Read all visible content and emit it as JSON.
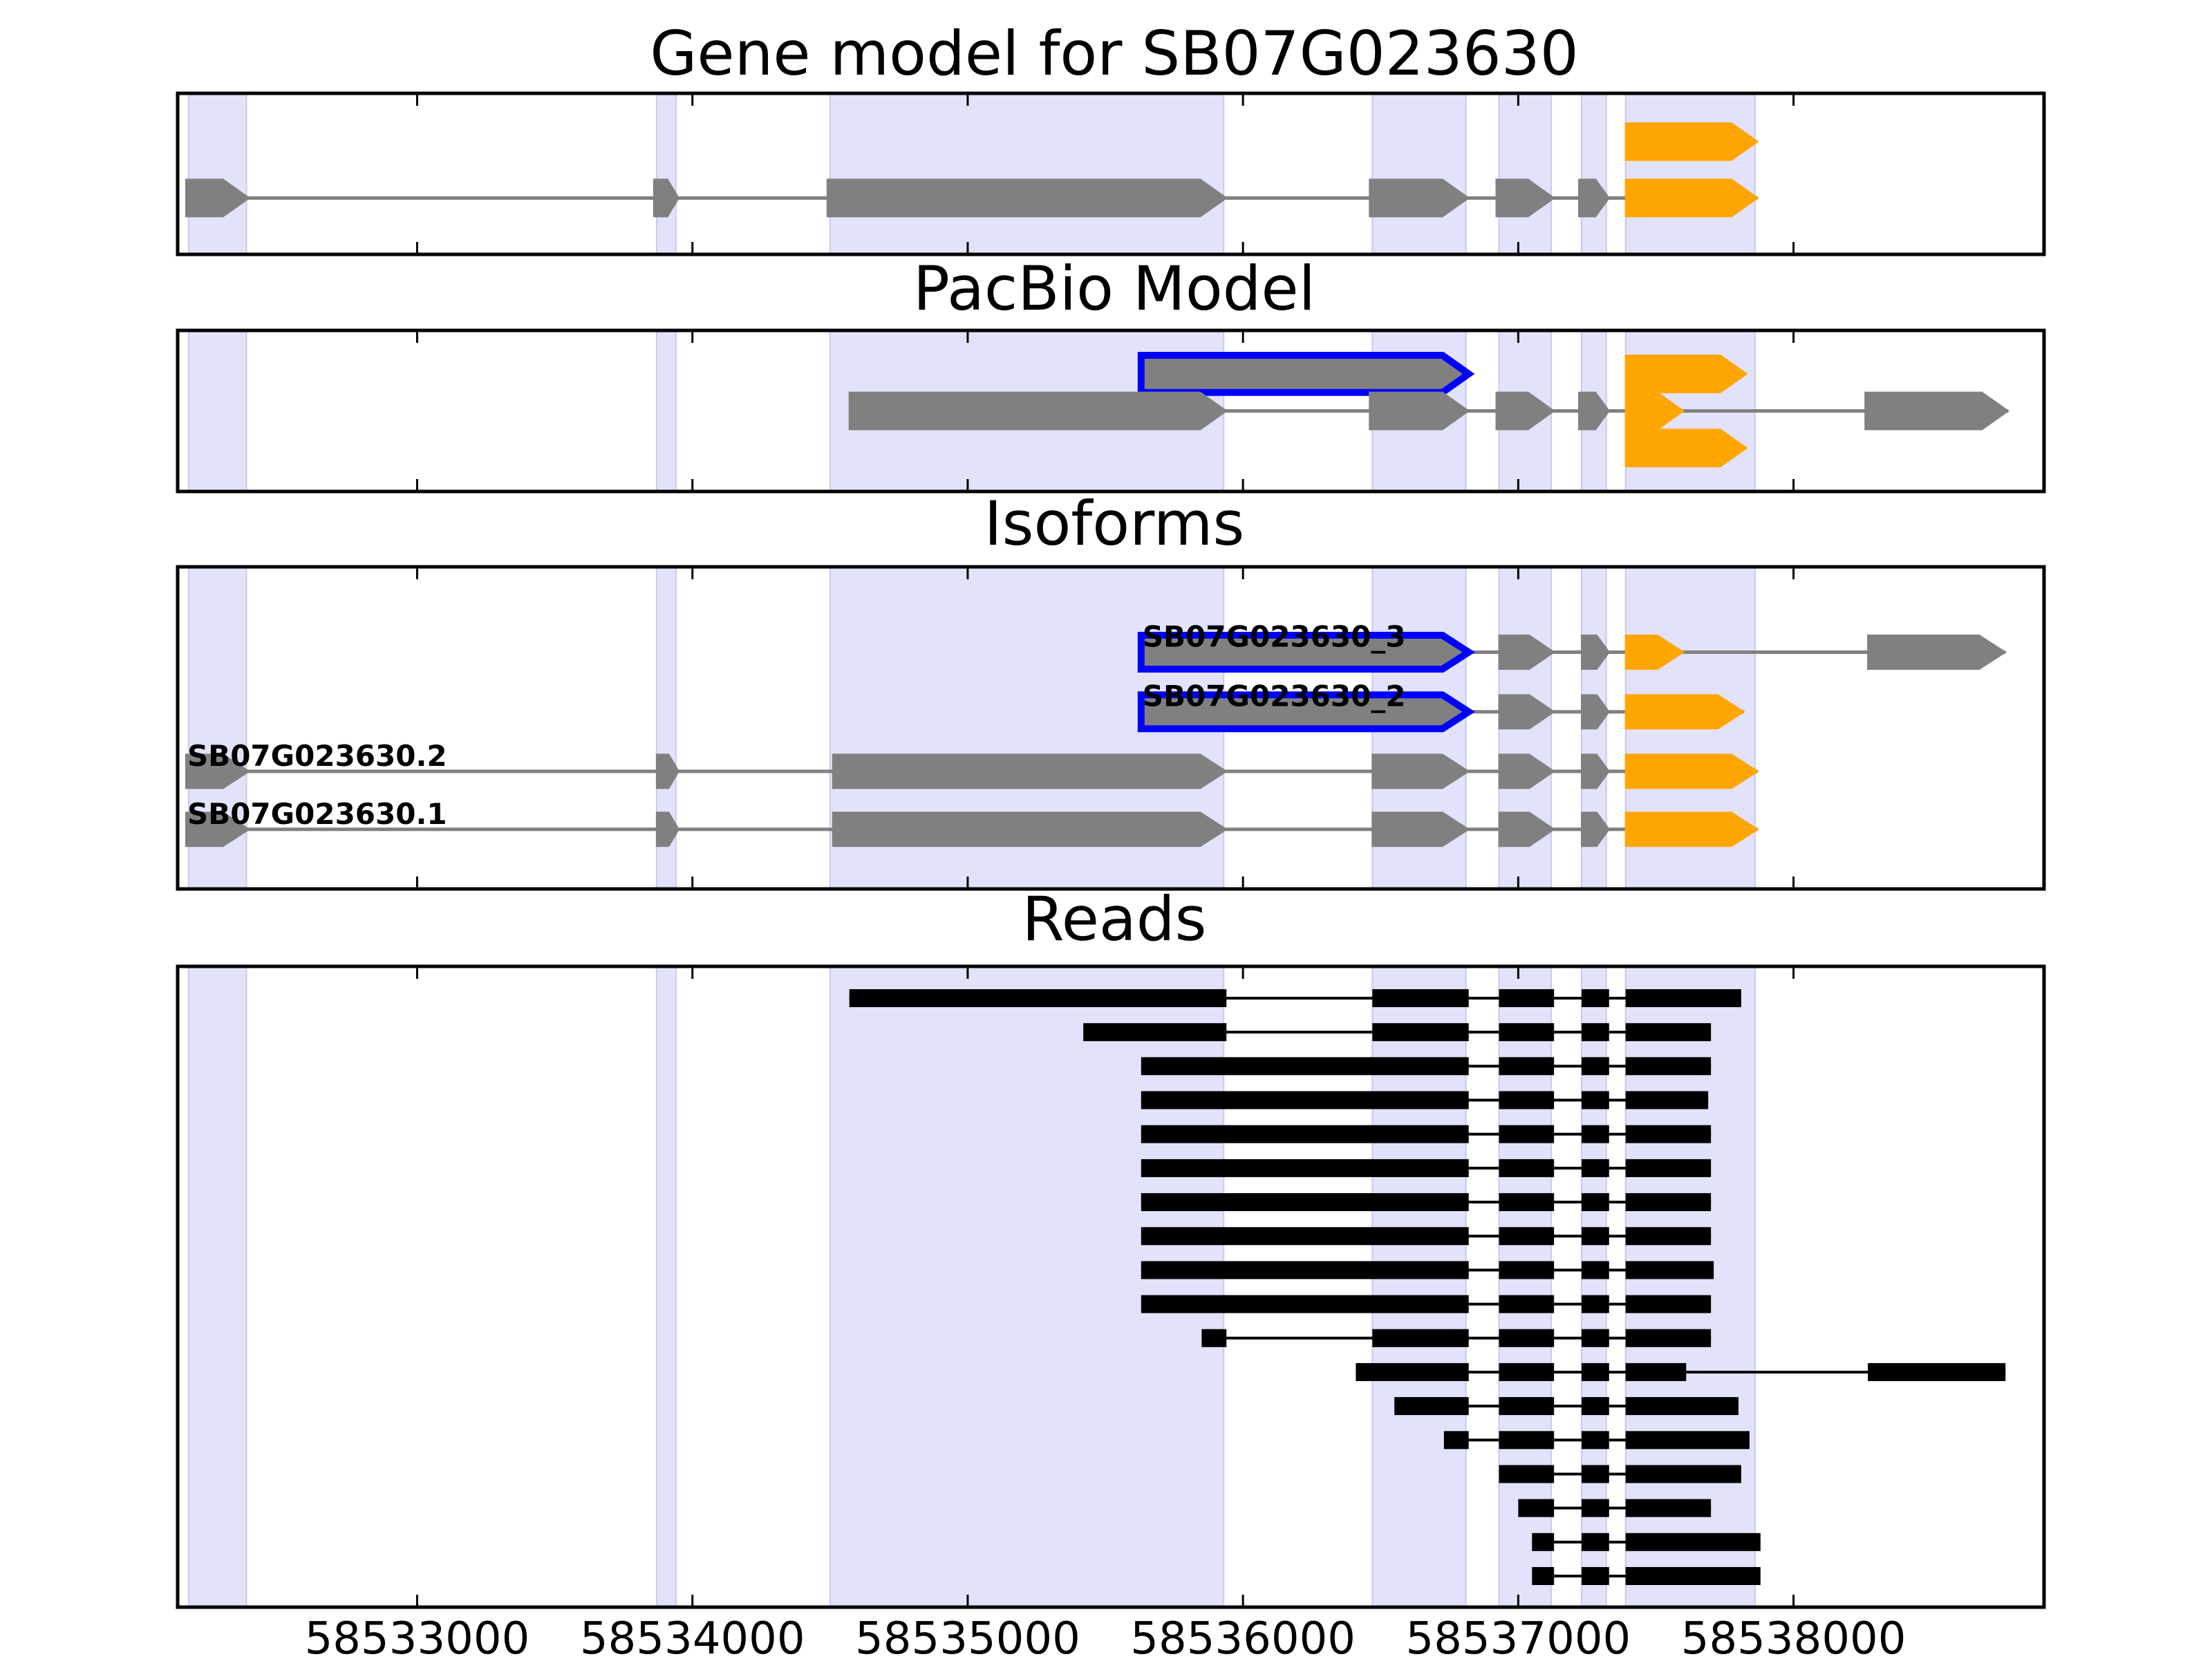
{
  "chart_data": {
    "type": "gene-structure",
    "xlim": [
      58532130,
      58538910
    ],
    "xticks": [
      58533000,
      58534000,
      58535000,
      58536000,
      58537000,
      58538000
    ],
    "xtick_labels": [
      "58533000",
      "58534000",
      "58535000",
      "58536000",
      "58537000",
      "58538000"
    ],
    "colors": {
      "exon": "#808080",
      "utr": "#ffa500",
      "highlight_outline": "#0000ff",
      "shade": "#e2e2fb",
      "intron_line": "#808080",
      "read": "#000000"
    },
    "shaded_regions": [
      [
        58532170,
        58532380
      ],
      [
        58533870,
        58533940
      ],
      [
        58534500,
        58535930
      ],
      [
        58536470,
        58536810
      ],
      [
        58536930,
        58537120
      ],
      [
        58537230,
        58537320
      ],
      [
        58537390,
        58537860
      ]
    ],
    "panels": [
      {
        "title": "Gene model for SB07G023630",
        "kind": "gene",
        "tracks": [
          {
            "label": "",
            "highlight": false,
            "y": 0.3,
            "exons": [
              [
                58537390,
                58537870,
                "utr"
              ]
            ]
          },
          {
            "label": "",
            "highlight": false,
            "y": 0.65,
            "exons": [
              [
                58532160,
                58532390,
                "cds"
              ],
              [
                58533860,
                58533950,
                "cds"
              ],
              [
                58534490,
                58535940,
                "cds"
              ],
              [
                58536460,
                58536820,
                "cds"
              ],
              [
                58536920,
                58537130,
                "cds"
              ],
              [
                58537220,
                58537330,
                "cds"
              ],
              [
                58537390,
                58537870,
                "utr"
              ]
            ]
          }
        ]
      },
      {
        "title": "PacBio Model",
        "kind": "gene",
        "tracks": [
          {
            "label": "",
            "highlight": true,
            "y": 0.27,
            "exons": [
              [
                58535630,
                58536820,
                "cds"
              ]
            ]
          },
          {
            "label": "",
            "highlight": false,
            "y": 0.5,
            "exons": [
              [
                58534570,
                58535940,
                "cds"
              ],
              [
                58536460,
                58536820,
                "cds"
              ],
              [
                58536920,
                58537130,
                "cds"
              ],
              [
                58537220,
                58537330,
                "cds"
              ],
              [
                58537390,
                58537600,
                "utr"
              ],
              [
                58538260,
                58538780,
                "cds"
              ]
            ]
          },
          {
            "label": "",
            "highlight": false,
            "y": 0.73,
            "exons": [
              [
                58537390,
                58537830,
                "utr"
              ]
            ]
          },
          {
            "label": "",
            "highlight": false,
            "y": 0.27,
            "exons": [
              [
                58537390,
                58537830,
                "utr"
              ]
            ]
          }
        ]
      },
      {
        "title": "Isoforms",
        "kind": "gene",
        "tracks": [
          {
            "label": "SB07G023630_3",
            "highlight": true,
            "y": 0.265,
            "exons": [
              [
                58535630,
                58536820,
                "cds"
              ],
              [
                58536930,
                58537130,
                "cds"
              ],
              [
                58537230,
                58537330,
                "cds"
              ],
              [
                58537390,
                58537600,
                "utr"
              ],
              [
                58538270,
                58538770,
                "cds"
              ]
            ]
          },
          {
            "label": "SB07G023630_2",
            "highlight": true,
            "y": 0.45,
            "exons": [
              [
                58535630,
                58536820,
                "cds"
              ],
              [
                58536930,
                58537130,
                "cds"
              ],
              [
                58537230,
                58537330,
                "cds"
              ],
              [
                58537390,
                58537820,
                "utr"
              ]
            ]
          },
          {
            "label": "SB07G023630.2",
            "highlight": false,
            "y": 0.635,
            "exons": [
              [
                58532160,
                58532390,
                "cds"
              ],
              [
                58533870,
                58533950,
                "cds"
              ],
              [
                58534510,
                58535940,
                "cds"
              ],
              [
                58536470,
                58536820,
                "cds"
              ],
              [
                58536930,
                58537130,
                "cds"
              ],
              [
                58537230,
                58537330,
                "cds"
              ],
              [
                58537390,
                58537870,
                "utr"
              ]
            ]
          },
          {
            "label": "SB07G023630.1",
            "highlight": false,
            "y": 0.815,
            "exons": [
              [
                58532160,
                58532390,
                "cds"
              ],
              [
                58533870,
                58533950,
                "cds"
              ],
              [
                58534510,
                58535940,
                "cds"
              ],
              [
                58536470,
                58536820,
                "cds"
              ],
              [
                58536930,
                58537130,
                "cds"
              ],
              [
                58537230,
                58537330,
                "cds"
              ],
              [
                58537390,
                58537870,
                "utr"
              ]
            ]
          }
        ]
      },
      {
        "title": "Reads",
        "kind": "reads",
        "reads": [
          [
            [
              58534570,
              58535940
            ],
            [
              58536470,
              58536820
            ],
            [
              58536930,
              58537130
            ],
            [
              58537230,
              58537330
            ],
            [
              58537390,
              58537810
            ]
          ],
          [
            [
              58535420,
              58535940
            ],
            [
              58536470,
              58536820
            ],
            [
              58536930,
              58537130
            ],
            [
              58537230,
              58537330
            ],
            [
              58537390,
              58537700
            ]
          ],
          [
            [
              58535630,
              58536820
            ],
            [
              58536930,
              58537130
            ],
            [
              58537230,
              58537330
            ],
            [
              58537390,
              58537700
            ]
          ],
          [
            [
              58535630,
              58536820
            ],
            [
              58536930,
              58537130
            ],
            [
              58537230,
              58537330
            ],
            [
              58537390,
              58537690
            ]
          ],
          [
            [
              58535630,
              58536820
            ],
            [
              58536930,
              58537130
            ],
            [
              58537230,
              58537330
            ],
            [
              58537390,
              58537700
            ]
          ],
          [
            [
              58535630,
              58536820
            ],
            [
              58536930,
              58537130
            ],
            [
              58537230,
              58537330
            ],
            [
              58537390,
              58537700
            ]
          ],
          [
            [
              58535630,
              58536820
            ],
            [
              58536930,
              58537130
            ],
            [
              58537230,
              58537330
            ],
            [
              58537390,
              58537700
            ]
          ],
          [
            [
              58535630,
              58536820
            ],
            [
              58536930,
              58537130
            ],
            [
              58537230,
              58537330
            ],
            [
              58537390,
              58537700
            ]
          ],
          [
            [
              58535630,
              58536820
            ],
            [
              58536930,
              58537130
            ],
            [
              58537230,
              58537330
            ],
            [
              58537390,
              58537710
            ]
          ],
          [
            [
              58535630,
              58536820
            ],
            [
              58536930,
              58537130
            ],
            [
              58537230,
              58537330
            ],
            [
              58537390,
              58537700
            ]
          ],
          [
            [
              58535850,
              58535940
            ],
            [
              58536470,
              58536820
            ],
            [
              58536930,
              58537130
            ],
            [
              58537230,
              58537330
            ],
            [
              58537390,
              58537700
            ]
          ],
          [
            [
              58536410,
              58536820
            ],
            [
              58536930,
              58537130
            ],
            [
              58537230,
              58537330
            ],
            [
              58537390,
              58537610
            ],
            [
              58538270,
              58538770
            ]
          ],
          [
            [
              58536550,
              58536820
            ],
            [
              58536930,
              58537130
            ],
            [
              58537230,
              58537330
            ],
            [
              58537390,
              58537800
            ]
          ],
          [
            [
              58536730,
              58536820
            ],
            [
              58536930,
              58537130
            ],
            [
              58537230,
              58537330
            ],
            [
              58537390,
              58537840
            ]
          ],
          [
            [
              58536930,
              58537130
            ],
            [
              58537230,
              58537330
            ],
            [
              58537390,
              58537810
            ]
          ],
          [
            [
              58537000,
              58537130
            ],
            [
              58537230,
              58537330
            ],
            [
              58537390,
              58537700
            ]
          ],
          [
            [
              58537050,
              58537130
            ],
            [
              58537230,
              58537330
            ],
            [
              58537390,
              58537880
            ]
          ],
          [
            [
              58537050,
              58537130
            ],
            [
              58537230,
              58537330
            ],
            [
              58537390,
              58537880
            ]
          ]
        ]
      }
    ]
  }
}
